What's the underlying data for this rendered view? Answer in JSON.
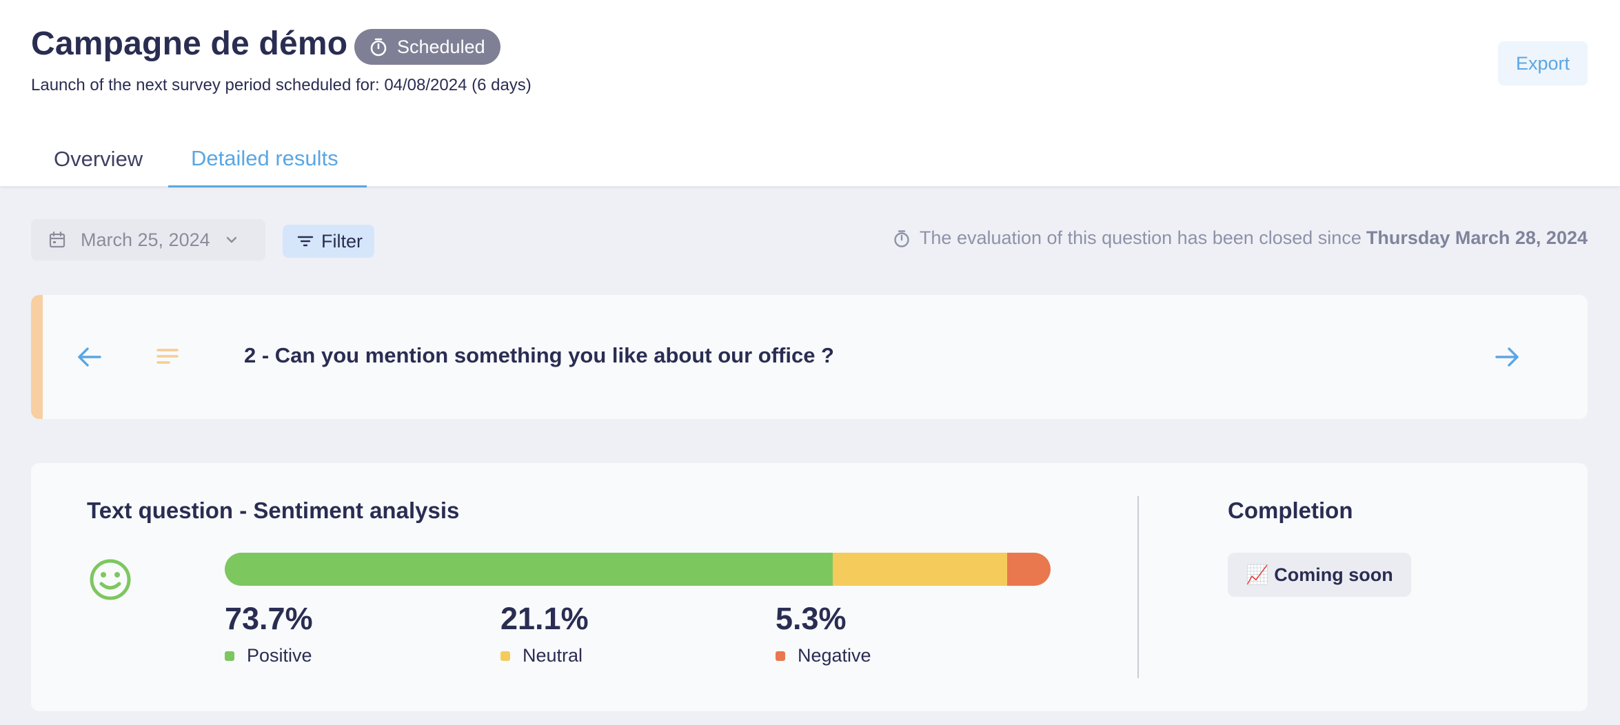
{
  "header": {
    "title": "Campagne de démo",
    "status_badge": "Scheduled",
    "subtitle": "Launch of the next survey period scheduled for: 04/08/2024 (6 days)",
    "export_label": "Export"
  },
  "tabs": [
    {
      "label": "Overview",
      "active": false
    },
    {
      "label": "Detailed results",
      "active": true
    }
  ],
  "toolbar": {
    "date": "March 25, 2024",
    "filter_label": "Filter",
    "closed_note_prefix": "The evaluation of this question has been closed since",
    "closed_note_date": "Thursday March 28, 2024"
  },
  "question": {
    "text": "2 - Can you mention something you like about our office ?"
  },
  "sentiment": {
    "title": "Text question - Sentiment analysis",
    "items": [
      {
        "pct_label": "73.7%",
        "label": "Positive",
        "value": 73.7,
        "color": "#7dc75f"
      },
      {
        "pct_label": "21.1%",
        "label": "Neutral",
        "value": 21.1,
        "color": "#f5cb5c"
      },
      {
        "pct_label": "5.3%",
        "label": "Negative",
        "value": 5.3,
        "color": "#ea784e"
      }
    ]
  },
  "completion": {
    "title": "Completion",
    "status": "📈 Coming soon"
  },
  "colors": {
    "accent": "#5aa6e3",
    "badge": "#7f8096",
    "question_stripe": "#f7cfa2",
    "smiley": "#7dc75f"
  }
}
